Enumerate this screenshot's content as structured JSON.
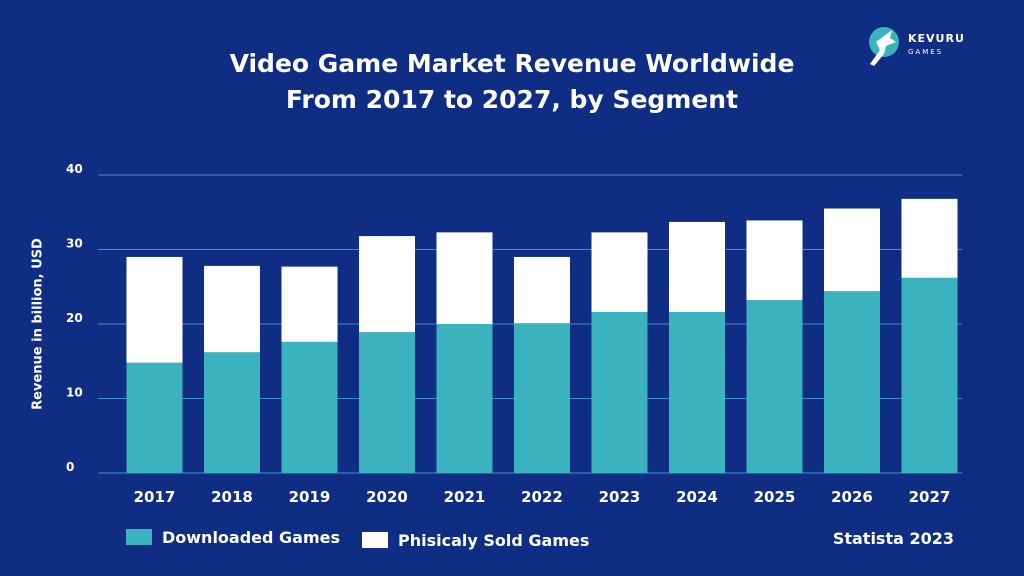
{
  "logo": {
    "name": "KEVURU",
    "sub": "GAMES"
  },
  "colors": {
    "background": "#102d84",
    "downloaded": "#3ab3be",
    "physical": "#ffffff",
    "grid": "#3f8fce"
  },
  "source": "Statista 2023",
  "chart_data": {
    "type": "bar",
    "stacked": true,
    "title_lines": [
      "Video Game Market Revenue Worldwide",
      "From 2017 to 2027, by Segment"
    ],
    "ylabel": "Revenue in billion, USD",
    "xlabel": "",
    "ylim": [
      0,
      40
    ],
    "yticks": [
      0,
      10,
      20,
      30,
      40
    ],
    "grid": true,
    "legend_position": "bottom-left",
    "categories": [
      "2017",
      "2018",
      "2019",
      "2020",
      "2021",
      "2022",
      "2023",
      "2024",
      "2025",
      "2026",
      "2027"
    ],
    "series": [
      {
        "name": "Downloaded Games",
        "values": [
          14.8,
          16.2,
          17.6,
          18.9,
          20.0,
          20.1,
          21.6,
          21.6,
          23.2,
          24.4,
          26.2
        ]
      },
      {
        "name": "Phisicaly Sold Games",
        "values": [
          14.2,
          11.6,
          10.1,
          12.9,
          12.3,
          8.9,
          10.7,
          12.1,
          10.7,
          11.1,
          10.6
        ]
      }
    ]
  }
}
